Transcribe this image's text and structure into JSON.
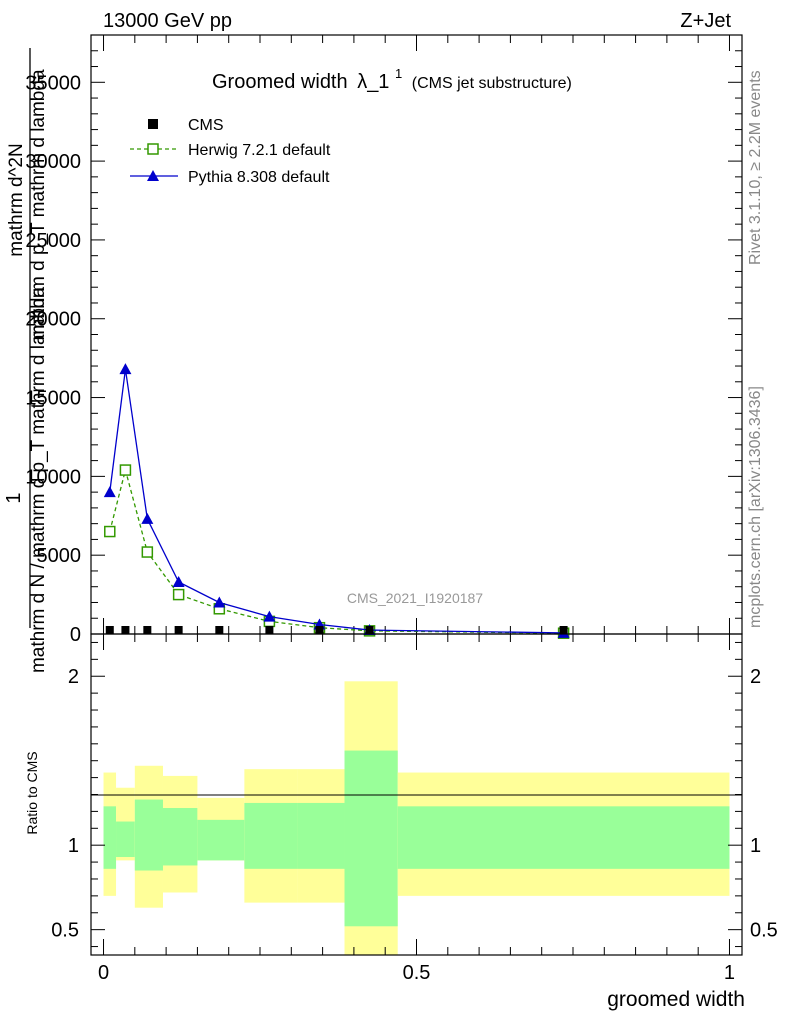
{
  "header": {
    "energy": "13000 GeV pp",
    "process": "Z+Jet"
  },
  "side_labels": {
    "rivet": "Rivet 3.1.10, ≥ 2.2M events",
    "mcplots": "mcplots.cern.ch [arXiv:1306.3436]"
  },
  "chart_data": [
    {
      "type": "line",
      "title_main": "Groomed width",
      "title_symbol": "λ_1",
      "title_sup": "1",
      "title_sub": "(CMS jet substructure)",
      "analysis_id": "CMS_2021_I1920187",
      "ylabel_line1": "1",
      "ylabel_line2": "mathrm d N / mathrm d p_T mathrm d lambda",
      "ylabel_num1": "mathrm d^2N",
      "ylabel_num2": "mathrm d p_T mathrm d lambda",
      "ylim": [
        0,
        38000
      ],
      "y_ticks": [
        {
          "v": 5000,
          "label": "5000"
        },
        {
          "v": 10000,
          "label": "10000"
        },
        {
          "v": 15000,
          "label": "15000"
        },
        {
          "v": 20000,
          "label": "20000"
        },
        {
          "v": 25000,
          "label": "25000"
        },
        {
          "v": 30000,
          "label": "30000"
        },
        {
          "v": 35000,
          "label": "35000"
        }
      ],
      "y_zero_label": "0",
      "xlim": [
        -0.02,
        1.02
      ],
      "legend": [
        {
          "name": "CMS",
          "color": "#000000",
          "marker": "square-filled"
        },
        {
          "name": "Herwig 7.2.1 default",
          "color": "#339900",
          "marker": "square-open",
          "dash": true
        },
        {
          "name": "Pythia 8.308 default",
          "color": "#0000cc",
          "marker": "triangle-filled"
        }
      ],
      "series": [
        {
          "name": "CMS",
          "x": [
            0.01,
            0.035,
            0.07,
            0.12,
            0.185,
            0.265,
            0.345,
            0.425,
            0.735
          ],
          "y": [
            100,
            100,
            100,
            100,
            80,
            60,
            40,
            20,
            5
          ]
        },
        {
          "name": "Herwig 7.2.1 default",
          "x": [
            0.01,
            0.035,
            0.07,
            0.12,
            0.185,
            0.265,
            0.345,
            0.425,
            0.735
          ],
          "y": [
            6500,
            10400,
            5200,
            2500,
            1600,
            800,
            400,
            200,
            50
          ]
        },
        {
          "name": "Pythia 8.308 default",
          "x": [
            0.01,
            0.035,
            0.07,
            0.12,
            0.185,
            0.265,
            0.345,
            0.425,
            0.735
          ],
          "y": [
            9000,
            16800,
            7300,
            3300,
            2000,
            1100,
            600,
            250,
            70
          ]
        }
      ]
    },
    {
      "type": "area",
      "ylabel": "Ratio to CMS",
      "xlabel": "groomed width",
      "ylim": [
        0.35,
        2.25
      ],
      "xlim": [
        -0.02,
        1.02
      ],
      "y_ticks": [
        {
          "v": 0.5,
          "label": "0.5"
        },
        {
          "v": 1,
          "label": "1"
        },
        {
          "v": 2,
          "label": "2"
        }
      ],
      "x_ticks": [
        {
          "v": 0,
          "label": "0"
        },
        {
          "v": 0.5,
          "label": "0.5"
        },
        {
          "v": 1,
          "label": "1"
        }
      ],
      "band_colors": {
        "outer": "#ffff99",
        "inner": "#99ff99"
      },
      "bins": [
        {
          "lo": 0.0,
          "hi": 0.02,
          "stat_lo": 0.86,
          "stat_hi": 1.23,
          "tot_lo": 0.7,
          "tot_hi": 1.43
        },
        {
          "lo": 0.02,
          "hi": 0.05,
          "stat_lo": 0.93,
          "stat_hi": 1.14,
          "tot_lo": 0.91,
          "tot_hi": 1.34
        },
        {
          "lo": 0.05,
          "hi": 0.095,
          "stat_lo": 0.85,
          "stat_hi": 1.27,
          "tot_lo": 0.63,
          "tot_hi": 1.47
        },
        {
          "lo": 0.095,
          "hi": 0.15,
          "stat_lo": 0.88,
          "stat_hi": 1.22,
          "tot_lo": 0.72,
          "tot_hi": 1.41
        },
        {
          "lo": 0.15,
          "hi": 0.225,
          "stat_lo": 0.91,
          "stat_hi": 1.15,
          "tot_lo": 0.91,
          "tot_hi": 1.28
        },
        {
          "lo": 0.225,
          "hi": 0.31,
          "stat_lo": 0.86,
          "stat_hi": 1.25,
          "tot_lo": 0.66,
          "tot_hi": 1.45
        },
        {
          "lo": 0.31,
          "hi": 0.385,
          "stat_lo": 0.86,
          "stat_hi": 1.25,
          "tot_lo": 0.66,
          "tot_hi": 1.45
        },
        {
          "lo": 0.385,
          "hi": 0.47,
          "stat_lo": 0.52,
          "stat_hi": 1.56,
          "tot_lo": 0.3,
          "tot_hi": 1.97
        },
        {
          "lo": 0.47,
          "hi": 1.0,
          "stat_lo": 0.86,
          "stat_hi": 1.23,
          "tot_lo": 0.7,
          "tot_hi": 1.43
        }
      ]
    }
  ]
}
